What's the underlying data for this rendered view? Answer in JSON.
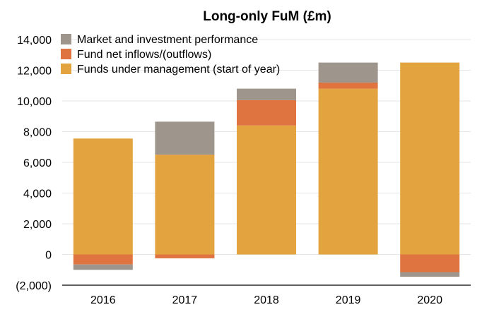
{
  "chart_data": {
    "type": "bar",
    "stacked": true,
    "title": "Long-only FuM (£m)",
    "xlabel": "",
    "ylabel": "",
    "categories": [
      "2016",
      "2017",
      "2018",
      "2019",
      "2020"
    ],
    "ylim": [
      -2000,
      14000
    ],
    "yticks": [
      -2000,
      0,
      2000,
      4000,
      6000,
      8000,
      10000,
      12000,
      14000
    ],
    "ytick_labels": [
      "(2,000)",
      "0",
      "2,000",
      "4,000",
      "6,000",
      "8,000",
      "10,000",
      "12,000",
      "14,000"
    ],
    "grid": true,
    "legend_position": "top-left",
    "series": [
      {
        "name": "Funds under management (start of year)",
        "color": "#E3A43F",
        "values": [
          7550,
          6500,
          8400,
          10800,
          12500
        ]
      },
      {
        "name": "Fund net inflows/(outflows)",
        "color": "#E07441",
        "values": [
          -650,
          -250,
          1650,
          400,
          -1150
        ]
      },
      {
        "name": "Market and investment performance",
        "color": "#9E958C",
        "values": [
          -350,
          2150,
          750,
          1300,
          -300
        ]
      }
    ],
    "legend_order": [
      "Market and investment performance",
      "Fund net inflows/(outflows)",
      "Funds under management (start of year)"
    ]
  }
}
